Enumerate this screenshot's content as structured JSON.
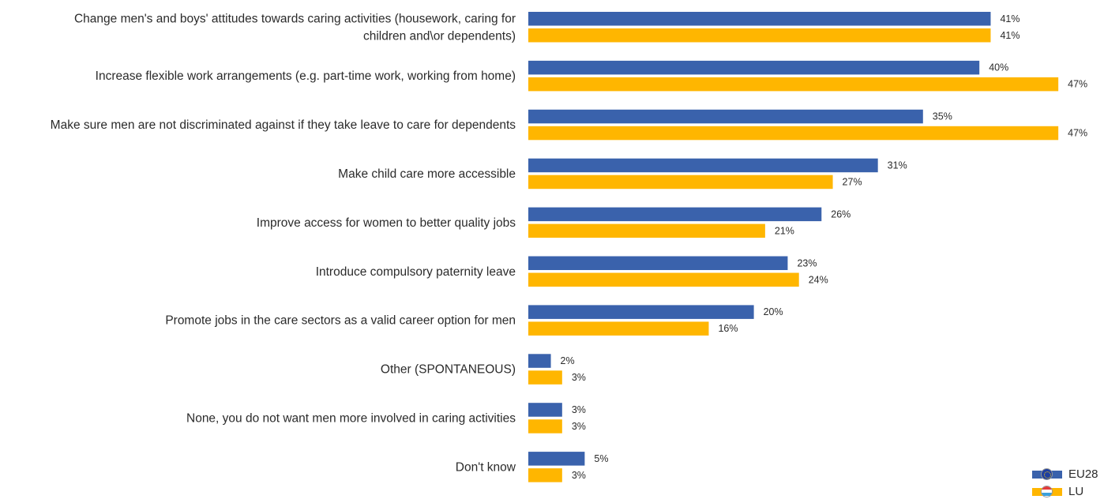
{
  "chart_data": {
    "type": "bar",
    "orientation": "horizontal",
    "categories": [
      "Change men's and boys' attitudes towards caring activities (housework, caring for children and\\or dependents)",
      "Increase flexible work arrangements (e.g. part-time work, working from home)",
      "Make sure men are not discriminated against if they take leave to care for dependents",
      "Make child care more accessible",
      "Improve access for women to better quality jobs",
      "Introduce compulsory paternity leave",
      "Promote jobs in the care sectors as a valid career option for men",
      "Other (SPONTANEOUS)",
      "None, you do not want men more involved in caring activities",
      "Don't know"
    ],
    "category_lines": [
      [
        "Change men's and boys' attitudes towards caring activities (housework, caring for",
        "children and\\or dependents)"
      ],
      [
        "Increase flexible work arrangements (e.g. part-time work, working from home)"
      ],
      [
        "Make sure men are not discriminated against if they take leave to care for dependents"
      ],
      [
        "Make child care more accessible"
      ],
      [
        "Improve access for women to better quality jobs"
      ],
      [
        "Introduce compulsory paternity leave"
      ],
      [
        "Promote jobs in the care sectors as a valid career option for men"
      ],
      [
        "Other (SPONTANEOUS)"
      ],
      [
        "None, you do not want men more involved in caring activities"
      ],
      [
        "Don't know"
      ]
    ],
    "series": [
      {
        "name": "EU28",
        "color": "#3a62ac",
        "values": [
          41,
          40,
          35,
          31,
          26,
          23,
          20,
          2,
          3,
          5
        ]
      },
      {
        "name": "LU",
        "color": "#ffb600",
        "values": [
          41,
          47,
          47,
          27,
          21,
          24,
          16,
          3,
          3,
          3
        ]
      }
    ],
    "value_suffix": "%",
    "xlim": [
      0,
      48
    ],
    "grid": false,
    "legend_position": "bottom-right"
  },
  "legend": {
    "items": [
      {
        "label": "EU28",
        "icon": "eu-flag-icon",
        "color": "#3a62ac"
      },
      {
        "label": "LU",
        "icon": "luxembourg-flag-icon",
        "color": "#ffb600"
      }
    ]
  }
}
